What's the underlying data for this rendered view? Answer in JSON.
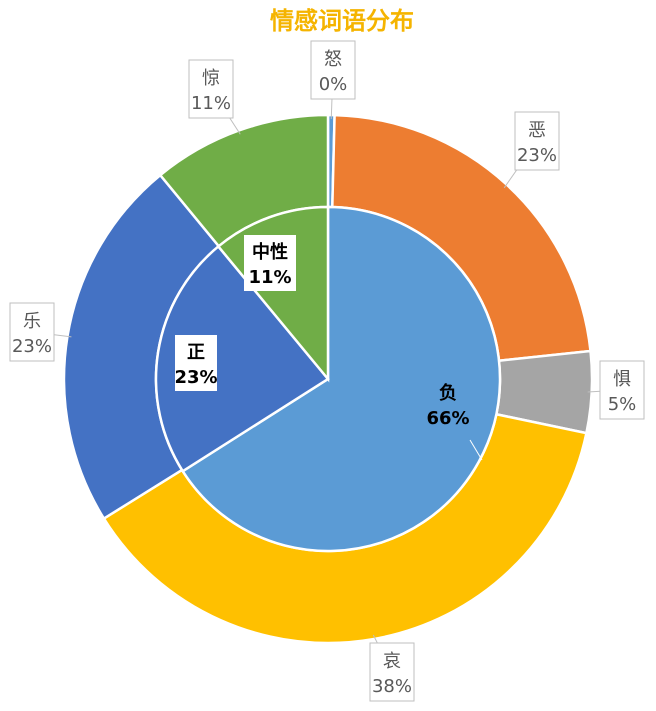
{
  "chart_data": {
    "type": "pie",
    "title": "情感词语分布",
    "title_color": "#F5B400",
    "inner_ring": [
      {
        "label": "负",
        "value": 66,
        "value_label": "66%",
        "color": "#5B9BD5"
      },
      {
        "label": "正",
        "value": 23,
        "value_label": "23%",
        "color": "#4472C4"
      },
      {
        "label": "中性",
        "value": 11,
        "value_label": "11%",
        "color": "#70AD47"
      }
    ],
    "outer_ring": [
      {
        "label": "怒",
        "value": 0.4,
        "value_label": "0%",
        "color": "#5B9BD5"
      },
      {
        "label": "恶",
        "value": 23,
        "value_label": "23%",
        "color": "#ED7D31"
      },
      {
        "label": "惧",
        "value": 5,
        "value_label": "5%",
        "color": "#A5A5A5"
      },
      {
        "label": "哀",
        "value": 38,
        "value_label": "38%",
        "color": "#FFC000"
      },
      {
        "label": "乐",
        "value": 23,
        "value_label": "23%",
        "color": "#4472C4"
      },
      {
        "label": "惊",
        "value": 11,
        "value_label": "11%",
        "color": "#70AD47"
      }
    ]
  }
}
